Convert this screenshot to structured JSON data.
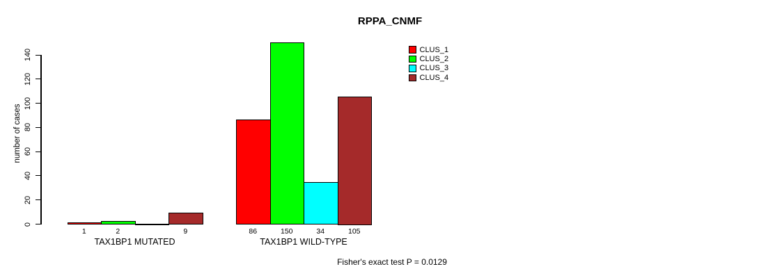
{
  "chart_data": {
    "type": "bar",
    "title": "RPPA_CNMF",
    "xlabel": "",
    "ylabel": "number of cases",
    "ylim": [
      0,
      140
    ],
    "yticks": [
      "0",
      "20",
      "40",
      "60",
      "80",
      "100",
      "120",
      "140"
    ],
    "grid": false,
    "legend_position": "top-right",
    "categories": [
      "TAX1BP1 MUTATED",
      "TAX1BP1 WILD-TYPE"
    ],
    "series": [
      {
        "name": "CLUS_1",
        "color": "#FF0000",
        "values": [
          1,
          86
        ]
      },
      {
        "name": "CLUS_2",
        "color": "#00FF00",
        "values": [
          2,
          150
        ]
      },
      {
        "name": "CLUS_3",
        "color": "#00FFFF",
        "values": [
          0,
          34
        ]
      },
      {
        "name": "CLUS_4",
        "color": "#A52A2A",
        "values": [
          9,
          105
        ]
      }
    ],
    "bar_value_labels": [
      [
        "1",
        "2",
        "",
        "9"
      ],
      [
        "86",
        "150",
        "34",
        "105"
      ]
    ],
    "footnote": "Fisher's exact test P = 0.0129"
  }
}
